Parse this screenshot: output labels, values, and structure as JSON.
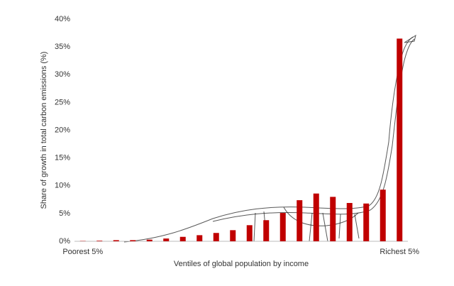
{
  "chart_data": {
    "type": "bar",
    "y_label": "Share of growth in total carbon emissions (%)",
    "x_label": "Ventiles of global population by income",
    "categories": [
      "Poorest 5%",
      null,
      null,
      null,
      null,
      null,
      null,
      null,
      null,
      null,
      null,
      null,
      null,
      null,
      null,
      null,
      null,
      null,
      null,
      "Richest 5%"
    ],
    "values": [
      0.05,
      0.1,
      0.2,
      0.2,
      0.3,
      0.5,
      0.8,
      1.1,
      1.5,
      2.0,
      2.9,
      3.8,
      5.1,
      7.4,
      8.6,
      8.0,
      6.9,
      6.8,
      9.3,
      36.5
    ],
    "color": "#c00000",
    "ylim": [
      0,
      40
    ],
    "yticks": [
      {
        "value": 0,
        "label": "0%"
      },
      {
        "value": 5,
        "label": "5%"
      },
      {
        "value": 10,
        "label": "10%"
      },
      {
        "value": 15,
        "label": "15%"
      },
      {
        "value": 20,
        "label": "20%"
      },
      {
        "value": 25,
        "label": "25%"
      },
      {
        "value": 30,
        "label": "30%"
      },
      {
        "value": 35,
        "label": "35%"
      },
      {
        "value": 40,
        "label": "40%"
      }
    ]
  }
}
